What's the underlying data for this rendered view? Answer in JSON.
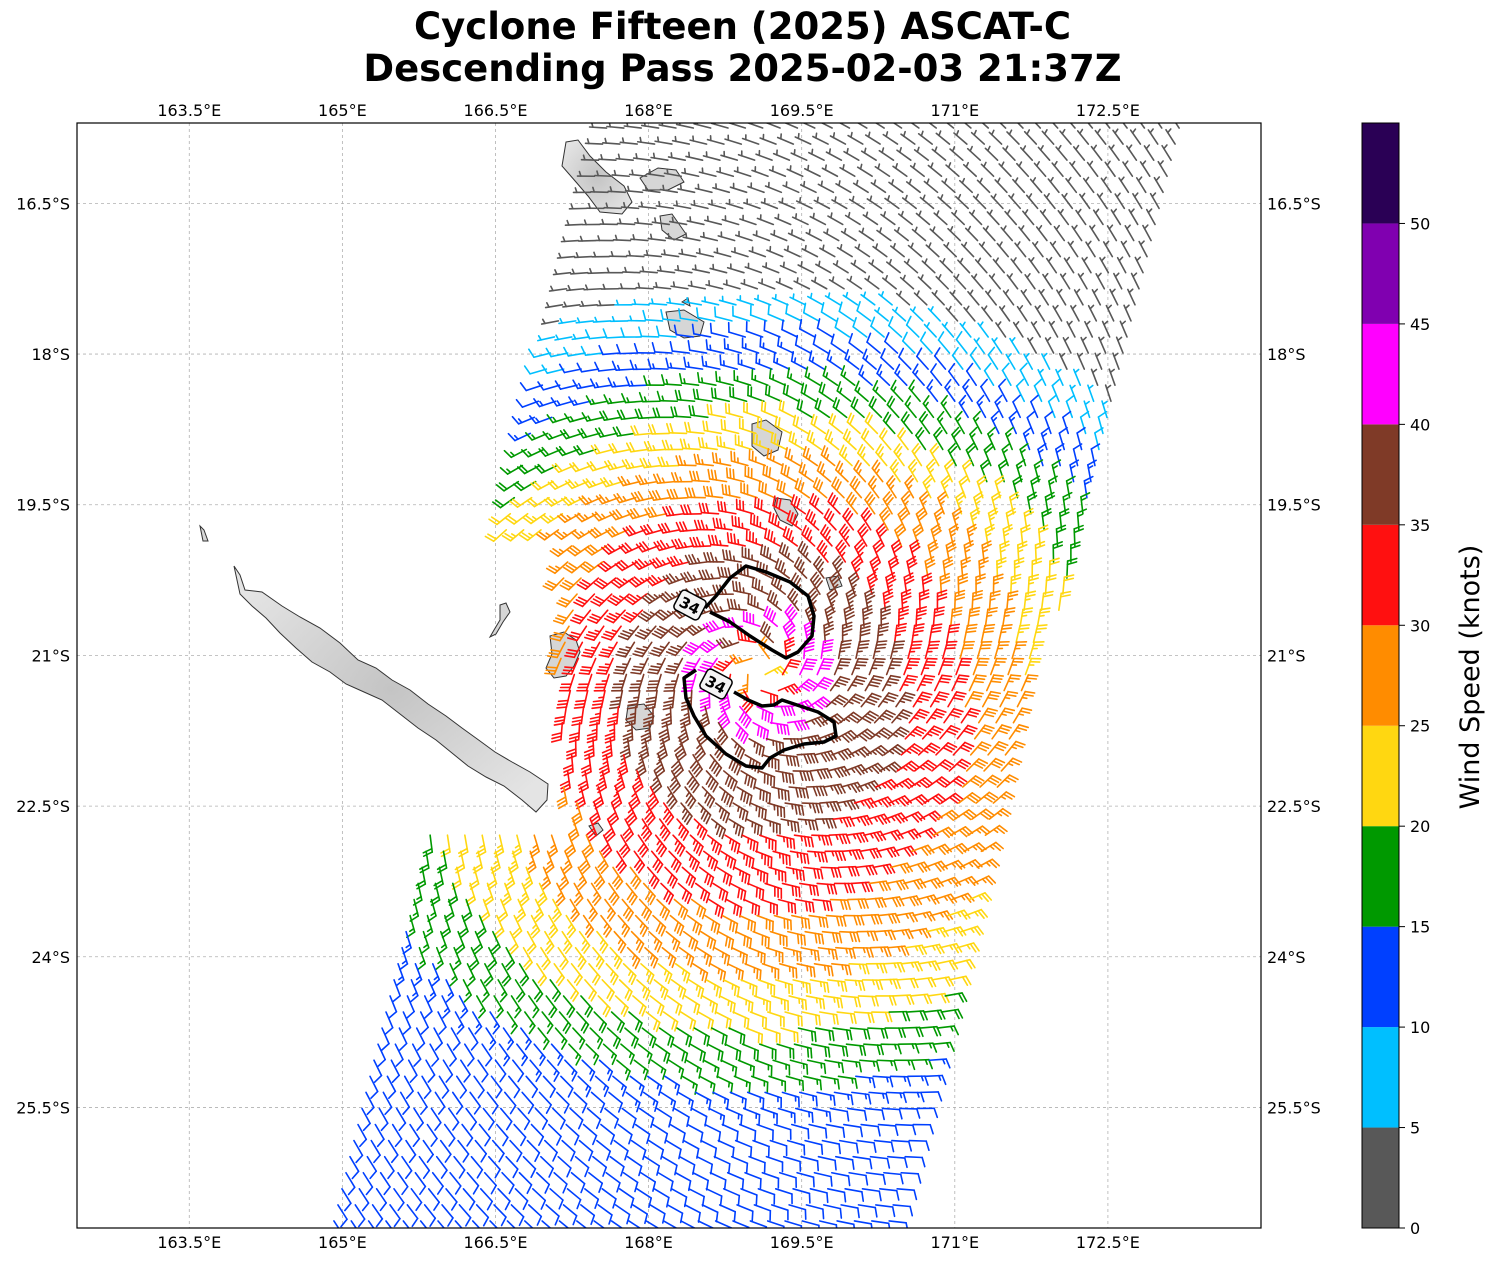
{
  "title": {
    "line1": "Cyclone Fifteen (2025) ASCAT-C",
    "line2": "Descending Pass 2025-02-03 21:37Z"
  },
  "map": {
    "lon_range": [
      162.4,
      174.0
    ],
    "lat_range": [
      -26.7,
      -15.7
    ],
    "lon_ticks": [
      163.5,
      165,
      166.5,
      168,
      169.5,
      171,
      172.5
    ],
    "lat_ticks": [
      -16.5,
      -18,
      -19.5,
      -21,
      -22.5,
      -24,
      -25.5
    ],
    "lon_tick_labels": [
      "163.5°E",
      "165°E",
      "166.5°E",
      "168°E",
      "169.5°E",
      "171°E",
      "172.5°E"
    ],
    "lat_tick_labels": [
      "16.5°S",
      "18°S",
      "19.5°S",
      "21°S",
      "22.5°S",
      "24°S",
      "25.5°S"
    ],
    "gridlines": true,
    "contour_label": "34",
    "contour_level_knots": 34,
    "storm_center": {
      "lon": 169.1,
      "lat": -21.15
    },
    "swath": {
      "left_edge_lon_top": 167.6,
      "left_edge_lon_bottom": 164.9,
      "right_edge_lon_top": 173.3,
      "right_edge_lon_bottom": 170.4
    }
  },
  "colorbar": {
    "label": "Wind Speed (knots)",
    "range": [
      0,
      55
    ],
    "tick_values": [
      0,
      5,
      10,
      15,
      20,
      25,
      30,
      35,
      40,
      45,
      50
    ],
    "tick_labels": [
      "0",
      "5",
      "10",
      "15",
      "20",
      "25",
      "30",
      "35",
      "40",
      "45",
      "50"
    ],
    "bins": [
      {
        "from": 0,
        "to": 5,
        "color": "#585858"
      },
      {
        "from": 5,
        "to": 10,
        "color": "#00bfff"
      },
      {
        "from": 10,
        "to": 15,
        "color": "#0040ff"
      },
      {
        "from": 15,
        "to": 20,
        "color": "#009900"
      },
      {
        "from": 20,
        "to": 25,
        "color": "#ffd711"
      },
      {
        "from": 25,
        "to": 30,
        "color": "#ff8c00"
      },
      {
        "from": 30,
        "to": 35,
        "color": "#ff1010"
      },
      {
        "from": 35,
        "to": 40,
        "color": "#7f3a27"
      },
      {
        "from": 40,
        "to": 45,
        "color": "#ff00ff"
      },
      {
        "from": 45,
        "to": 50,
        "color": "#8000b0"
      },
      {
        "from": 50,
        "to": 55,
        "color": "#2a0055"
      }
    ]
  },
  "land": {
    "fill": "#d6d6d6",
    "stroke": "#333333"
  }
}
